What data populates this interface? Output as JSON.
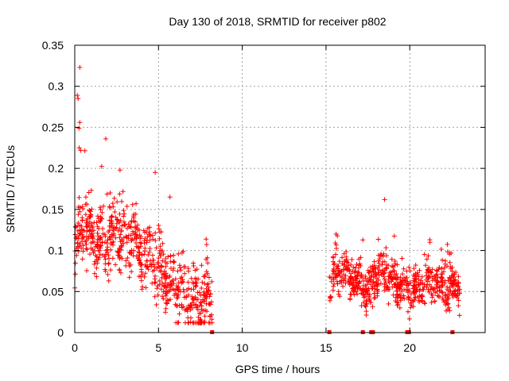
{
  "chart_data": {
    "type": "scatter",
    "title": "Day 130 of 2018, SRMTID for receiver p802",
    "xlabel": "GPS time / hours",
    "ylabel": "SRMTID / TECUs",
    "xlim": [
      0,
      24.5
    ],
    "ylim": [
      0,
      0.35
    ],
    "xticks": [
      0,
      5,
      10,
      15,
      20
    ],
    "xtick_labels": [
      "0",
      "5",
      "10",
      "15",
      "20"
    ],
    "yticks": [
      0,
      0.05,
      0.1,
      0.15,
      0.2,
      0.25,
      0.3,
      0.35
    ],
    "ytick_labels": [
      "0",
      "0.05",
      "0.1",
      "0.15",
      "0.2",
      "0.25",
      "0.3",
      "0.35"
    ],
    "grid": true,
    "marker": "plus",
    "color": "#ff0000",
    "series": [
      {
        "name": "SRMTID",
        "segments": [
          {
            "t_start": 0.0,
            "t_end": 8.2,
            "baseline_profile": [
              [
                0.0,
                0.105
              ],
              [
                0.5,
                0.13
              ],
              [
                1.0,
                0.115
              ],
              [
                1.5,
                0.11
              ],
              [
                2.0,
                0.11
              ],
              [
                2.5,
                0.12
              ],
              [
                3.0,
                0.115
              ],
              [
                3.5,
                0.11
              ],
              [
                4.0,
                0.095
              ],
              [
                4.5,
                0.085
              ],
              [
                5.0,
                0.08
              ],
              [
                5.5,
                0.065
              ],
              [
                6.0,
                0.055
              ],
              [
                6.5,
                0.045
              ],
              [
                7.0,
                0.04
              ],
              [
                7.5,
                0.038
              ],
              [
                8.2,
                0.04
              ]
            ],
            "spread": 0.035
          },
          {
            "t_start": 15.2,
            "t_end": 23.0,
            "baseline_profile": [
              [
                15.2,
                0.06
              ],
              [
                15.8,
                0.075
              ],
              [
                16.5,
                0.07
              ],
              [
                17.2,
                0.06
              ],
              [
                17.6,
                0.05
              ],
              [
                18.2,
                0.08
              ],
              [
                18.7,
                0.07
              ],
              [
                19.2,
                0.06
              ],
              [
                19.8,
                0.055
              ],
              [
                20.5,
                0.05
              ],
              [
                21.0,
                0.06
              ],
              [
                21.5,
                0.06
              ],
              [
                22.0,
                0.055
              ],
              [
                22.5,
                0.055
              ],
              [
                23.0,
                0.055
              ]
            ],
            "spread": 0.022
          }
        ],
        "peaks": [
          {
            "x": 0.3,
            "y": 0.323
          },
          {
            "x": 0.15,
            "y": 0.289
          },
          {
            "x": 0.2,
            "y": 0.285
          },
          {
            "x": 0.3,
            "y": 0.256
          },
          {
            "x": 0.25,
            "y": 0.249
          },
          {
            "x": 0.35,
            "y": 0.222
          },
          {
            "x": 1.85,
            "y": 0.236
          },
          {
            "x": 2.7,
            "y": 0.198
          },
          {
            "x": 4.8,
            "y": 0.195
          },
          {
            "x": 18.5,
            "y": 0.162
          },
          {
            "x": 21.2,
            "y": 0.113
          }
        ],
        "count": 1400
      }
    ],
    "data_gaps": [
      {
        "x_start": 8.2,
        "x_end": 15.2
      },
      {
        "x_start": 17.1,
        "x_end": 17.25
      },
      {
        "x_start": 17.7,
        "x_end": 17.85
      },
      {
        "x_start": 19.8,
        "x_end": 19.95
      },
      {
        "x_start": 22.5,
        "x_end": 22.55
      }
    ]
  }
}
